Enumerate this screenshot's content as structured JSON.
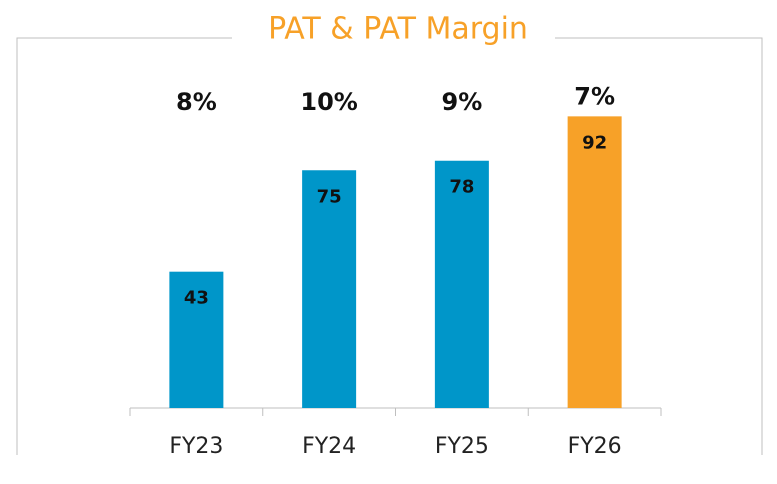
{
  "chart_data": {
    "type": "bar",
    "title": "PAT & PAT Margin",
    "categories": [
      "FY23",
      "FY24",
      "FY25",
      "FY26"
    ],
    "values": [
      43,
      75,
      78,
      92
    ],
    "colors": [
      "#0096c9",
      "#0096c9",
      "#0096c9",
      "#f7a128"
    ],
    "margins": [
      8,
      10,
      9,
      7
    ],
    "margin_labels": [
      "8%",
      "10%",
      "9%",
      "7%"
    ],
    "ylim": [
      0,
      100
    ]
  }
}
